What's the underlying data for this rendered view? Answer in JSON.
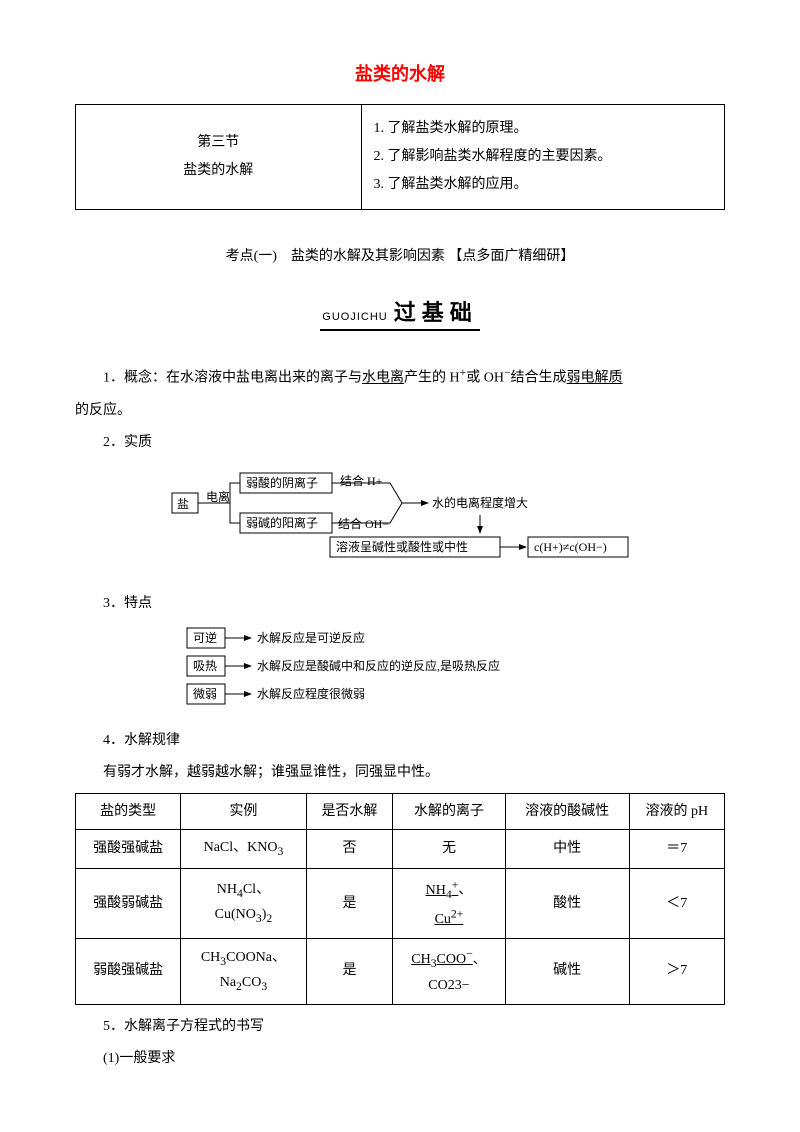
{
  "title": {
    "text": "盐类的水解",
    "color": "#ff0000"
  },
  "intro_table": {
    "section": "第三节",
    "topic": "盐类的水解",
    "objectives": [
      "1. 了解盐类水解的原理。",
      "2. 了解影响盐类水解程度的主要因素。",
      "3. 了解盐类水解的应用。"
    ]
  },
  "kaodian": "考点(一)　盐类的水解及其影响因素 【点多面广精细研】",
  "guojichu": {
    "pinyin": "GUOJICHU",
    "han": "过基础"
  },
  "p1_prefix": "1．概念：在水溶液中盐电离出来的离子与",
  "p1_u1": "水电离",
  "p1_mid": "产生的 H",
  "p1_plus": "+",
  "p1_mid2": "或 OH",
  "p1_minus": "−",
  "p1_mid3": "结合生成",
  "p1_u2": "弱电解质",
  "p1_suffix": "的反应。",
  "p2": "2．实质",
  "diagram1": {
    "salt": "盐",
    "ionize": "电离",
    "anion": "弱酸的阴离子",
    "cation": "弱碱的阳离子",
    "combine_h": "结合 H+",
    "combine_oh": "结合 OH−",
    "water_inc": "水的电离程度增大",
    "solution_nature": "溶液呈碱性或酸性或中性",
    "cneq": "c(H+)≠c(OH−)"
  },
  "p3": "3．特点",
  "diagram2": {
    "r1_box": "可逆",
    "r1_txt": "水解反应是可逆反应",
    "r2_box": "吸热",
    "r2_txt": "水解反应是酸碱中和反应的逆反应,是吸热反应",
    "r3_box": "微弱",
    "r3_txt": "水解反应程度很微弱"
  },
  "p4": "4．水解规律",
  "p4_rule": "有弱才水解，越弱越水解；谁强显谁性，同强显中性。",
  "table": {
    "headers": [
      "盐的类型",
      "实例",
      "是否水解",
      "水解的离子",
      "溶液的酸碱性",
      "溶液的 pH"
    ],
    "rows": [
      {
        "type": "强酸强碱盐",
        "ex_html": "NaCl、KNO<sub>3</sub>",
        "hydro": "否",
        "ion": "无",
        "nature": "中性",
        "ph": "＝7"
      },
      {
        "type": "强酸弱碱盐",
        "ex_html": "NH<sub>4</sub>Cl、<br>Cu(NO<sub>3</sub>)<sub>2</sub>",
        "hydro": "是",
        "ion_html": "<u>NH<sub>4</sub><sup>+</sup></u>、<br><u>Cu<sup>2+</sup></u>",
        "nature": "酸性",
        "ph": "＜7"
      },
      {
        "type": "弱酸强碱盐",
        "ex_html": "CH<sub>3</sub>COONa、<br>Na<sub>2</sub>CO<sub>3</sub>",
        "hydro": "是",
        "ion_html": "<u>CH<sub>3</sub>COO<sup>−</sup></u>、<br>CO23−",
        "nature": "碱性",
        "ph": "＞7"
      }
    ]
  },
  "p5": "5．水解离子方程式的书写",
  "p5_1": "(1)一般要求"
}
